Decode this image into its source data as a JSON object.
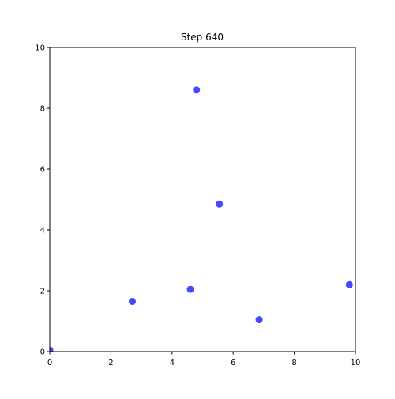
{
  "chart_data": {
    "type": "scatter",
    "title": "Step 640",
    "xlabel": "",
    "ylabel": "",
    "xlim": [
      0,
      10
    ],
    "ylim": [
      0,
      10
    ],
    "x_ticks": [
      0,
      2,
      4,
      6,
      8,
      10
    ],
    "y_ticks": [
      0,
      2,
      4,
      6,
      8,
      10
    ],
    "x_tick_labels": [
      "0",
      "2",
      "4",
      "6",
      "8",
      "10"
    ],
    "y_tick_labels": [
      "0",
      "2",
      "4",
      "6",
      "8",
      "10"
    ],
    "grid": false,
    "series": [
      {
        "name": "points",
        "color": "#0000ff",
        "points": [
          {
            "x": 0.0,
            "y": 0.05
          },
          {
            "x": 2.7,
            "y": 1.65
          },
          {
            "x": 4.6,
            "y": 2.05
          },
          {
            "x": 4.8,
            "y": 8.6
          },
          {
            "x": 5.55,
            "y": 4.85
          },
          {
            "x": 6.85,
            "y": 1.05
          },
          {
            "x": 9.8,
            "y": 2.2
          }
        ]
      }
    ]
  }
}
